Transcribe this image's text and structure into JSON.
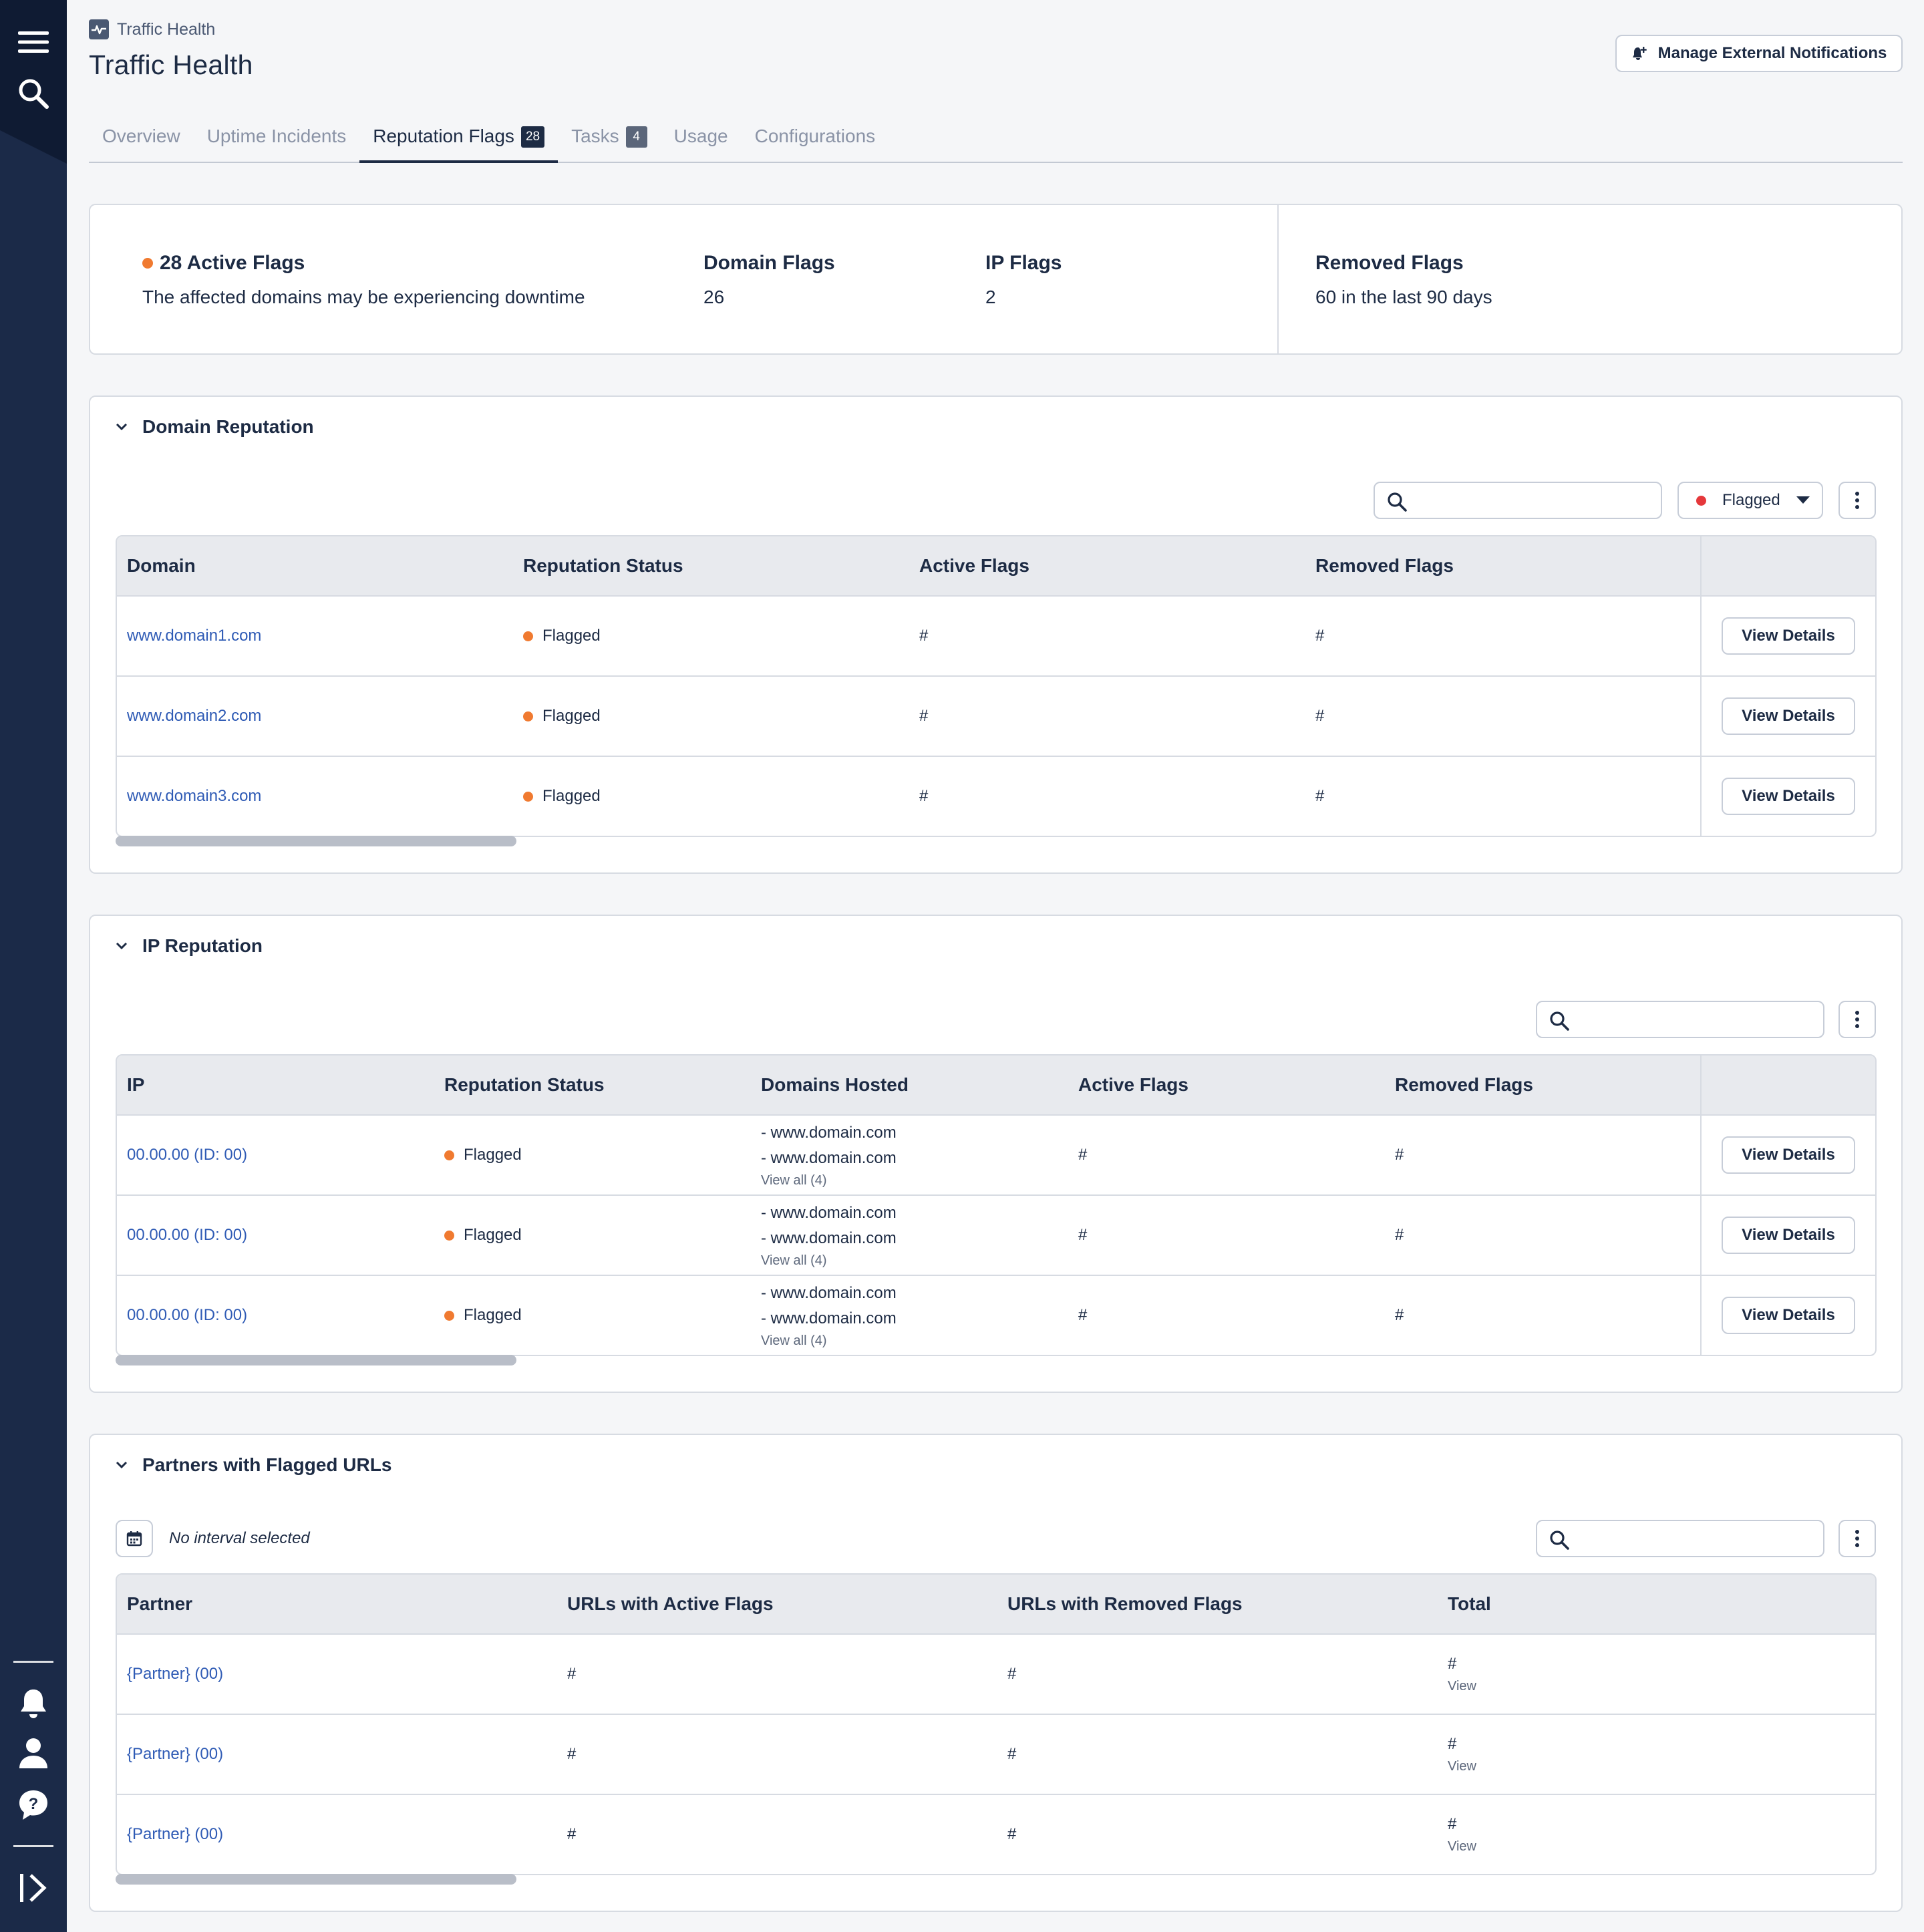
{
  "breadcrumb": {
    "label": "Traffic Health"
  },
  "page": {
    "title": "Traffic Health"
  },
  "header": {
    "manage_notifications_label": "Manage External Notifications"
  },
  "tabs": [
    {
      "label": "Overview"
    },
    {
      "label": "Uptime Incidents"
    },
    {
      "label": "Reputation Flags",
      "badge": "28"
    },
    {
      "label": "Tasks",
      "badge": "4"
    },
    {
      "label": "Usage"
    },
    {
      "label": "Configurations"
    }
  ],
  "summary": {
    "active_flags_label": "28 Active Flags",
    "active_flags_note": "The affected domains may be experiencing downtime",
    "domain_flags_label": "Domain Flags",
    "domain_flags_value": "26",
    "ip_flags_label": "IP Flags",
    "ip_flags_value": "2",
    "removed_flags_label": "Removed Flags",
    "removed_flags_value": "60 in the last 90 days"
  },
  "domain_reputation": {
    "title": "Domain Reputation",
    "search_placeholder": "",
    "filter_label": "Flagged",
    "columns": [
      "Domain",
      "Reputation Status",
      "Active Flags",
      "Removed Flags"
    ],
    "rows": [
      {
        "domain": "www.domain1.com",
        "status": "Flagged",
        "active": "#",
        "removed": "#",
        "action": "View Details"
      },
      {
        "domain": "www.domain2.com",
        "status": "Flagged",
        "active": "#",
        "removed": "#",
        "action": "View Details"
      },
      {
        "domain": "www.domain3.com",
        "status": "Flagged",
        "active": "#",
        "removed": "#",
        "action": "View Details"
      }
    ]
  },
  "ip_reputation": {
    "title": "IP Reputation",
    "search_placeholder": "",
    "columns": [
      "IP",
      "Reputation Status",
      "Domains Hosted",
      "Active Flags",
      "Removed Flags"
    ],
    "rows": [
      {
        "ip": "00.00.00 (ID: 00)",
        "status": "Flagged",
        "hosted": [
          "- www.domain.com",
          "- www.domain.com"
        ],
        "view_all": "View all (4)",
        "active": "#",
        "removed": "#",
        "action": "View Details"
      },
      {
        "ip": "00.00.00 (ID: 00)",
        "status": "Flagged",
        "hosted": [
          "- www.domain.com",
          "- www.domain.com"
        ],
        "view_all": "View all (4)",
        "active": "#",
        "removed": "#",
        "action": "View Details"
      },
      {
        "ip": "00.00.00 (ID: 00)",
        "status": "Flagged",
        "hosted": [
          "- www.domain.com",
          "- www.domain.com"
        ],
        "view_all": "View all (4)",
        "active": "#",
        "removed": "#",
        "action": "View Details"
      }
    ]
  },
  "partners": {
    "title": "Partners with Flagged URLs",
    "interval_label": "No interval selected",
    "search_placeholder": "",
    "columns": [
      "Partner",
      "URLs with Active Flags",
      "URLs with Removed Flags",
      "Total"
    ],
    "rows": [
      {
        "partner": "{Partner} (00)",
        "active": "#",
        "removed": "#",
        "total": "#",
        "view": "View"
      },
      {
        "partner": "{Partner} (00)",
        "active": "#",
        "removed": "#",
        "total": "#",
        "view": "View"
      },
      {
        "partner": "{Partner} (00)",
        "active": "#",
        "removed": "#",
        "total": "#",
        "view": "View"
      }
    ]
  },
  "colors": {
    "rail": "#1b2a48",
    "accent_dark": "#1d2b44",
    "link": "#2f5bb5",
    "flag_orange": "#f07a30",
    "flag_red": "#e5383b"
  },
  "icons": {
    "rail": [
      "menu-icon",
      "search-icon",
      "bell-icon",
      "user-icon",
      "help-icon",
      "expand-icon"
    ],
    "crumb": "heartbeat-icon",
    "notif": "bell-plus-icon"
  }
}
